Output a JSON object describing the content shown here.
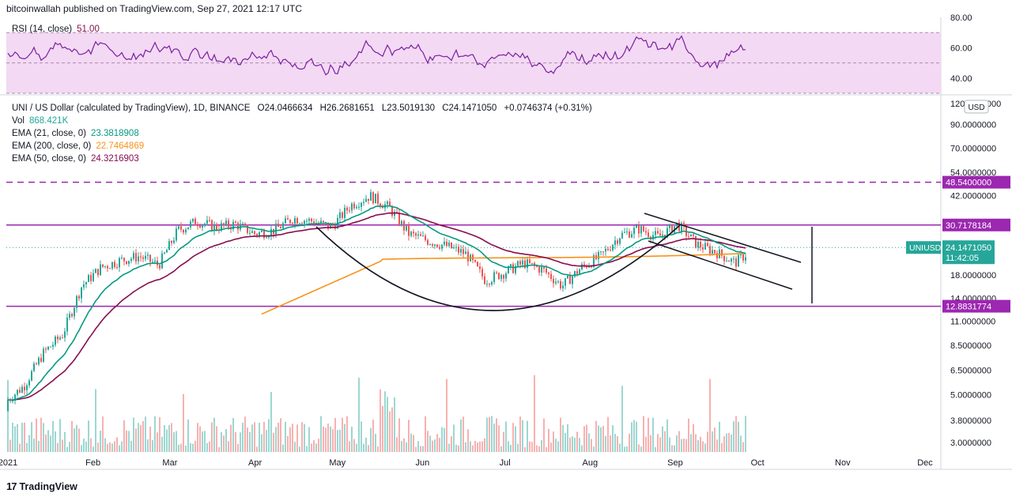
{
  "header": {
    "caption": "bitcoinwallah published on TradingView.com, Sep 27, 2021 12:17 UTC"
  },
  "footer": {
    "brand": "TradingView",
    "logo_text": "17"
  },
  "rsi_panel": {
    "label": "RSI (14, close)",
    "value": "51.00",
    "axis": [
      "80.00",
      "60.00",
      "40.00"
    ]
  },
  "main_legend": {
    "symbol": "UNI / US Dollar (calculated by TradingView), 1D, BINANCE",
    "ohlc": {
      "o": "O24.0466634",
      "h": "H26.2681651",
      "l": "L23.5019130",
      "c": "C24.1471050",
      "change": "+0.0746374 (+0.31%)"
    },
    "vol_label": "Vol",
    "vol_value": "868.421K",
    "ema21_label": "EMA (21, close, 0)",
    "ema21_value": "23.3818908",
    "ema200_label": "EMA (200, close, 0)",
    "ema200_value": "22.7464869",
    "ema50_label": "EMA (50, close, 0)",
    "ema50_value": "24.3216903"
  },
  "price_axis": {
    "unit": "USD",
    "ticks": [
      "120.0000000",
      "90.0000000",
      "70.0000000",
      "54.0000000",
      "42.0000000",
      "18.0000000",
      "14.0000000",
      "11.0000000",
      "8.5000000",
      "6.5000000",
      "5.0000000",
      "3.8000000",
      "3.0000000"
    ],
    "tags": {
      "upper_dashed": "48.5400000",
      "resistance": "30.7178184",
      "support": "12.8831774",
      "symbol_tag": "UNIUSD",
      "last_price": "24.1471050",
      "countdown": "11:42:05"
    }
  },
  "time_axis": {
    "labels": [
      "2021",
      "Feb",
      "Mar",
      "Apr",
      "May",
      "Jun",
      "Jul",
      "Aug",
      "Sep",
      "Oct",
      "Nov",
      "Dec"
    ]
  },
  "colors": {
    "candle_up": "#26a69a",
    "candle_down": "#ef5350",
    "ema21": "#089981",
    "ema200": "#f7931a",
    "ema50": "#880e4f",
    "level": "#9c27b0",
    "rsi": "#7b1fa2",
    "rsi_band": "#f3d9f3"
  },
  "chart_data": {
    "type": "candlestick",
    "symbol": "UNIUSD",
    "exchange": "BINANCE",
    "interval": "1D",
    "y_scale": "log",
    "x": [
      "2020-12-28",
      "2021-01-04",
      "2021-01-11",
      "2021-01-18",
      "2021-01-25",
      "2021-02-01",
      "2021-02-08",
      "2021-02-15",
      "2021-02-22",
      "2021-03-01",
      "2021-03-08",
      "2021-03-15",
      "2021-03-22",
      "2021-03-29",
      "2021-04-05",
      "2021-04-12",
      "2021-04-19",
      "2021-04-26",
      "2021-05-03",
      "2021-05-10",
      "2021-05-17",
      "2021-05-24",
      "2021-05-31",
      "2021-06-07",
      "2021-06-14",
      "2021-06-21",
      "2021-06-28",
      "2021-07-05",
      "2021-07-12",
      "2021-07-19",
      "2021-07-26",
      "2021-08-02",
      "2021-08-09",
      "2021-08-16",
      "2021-08-23",
      "2021-08-30",
      "2021-09-06",
      "2021-09-13",
      "2021-09-20",
      "2021-09-27"
    ],
    "close": [
      4.6,
      5.5,
      7.8,
      9.5,
      16.0,
      19.5,
      21.0,
      22.0,
      20.0,
      29.0,
      32.0,
      30.0,
      31.0,
      28.0,
      29.0,
      33.0,
      32.0,
      30.0,
      38.0,
      42.0,
      37.0,
      28.0,
      26.0,
      24.5,
      22.5,
      17.0,
      18.5,
      20.5,
      19.0,
      16.0,
      19.5,
      22.0,
      27.5,
      29.5,
      27.0,
      31.0,
      25.0,
      23.0,
      20.5,
      24.15
    ],
    "levels": {
      "upper_dashed": 48.54,
      "resistance": 30.7178184,
      "support": 12.8831774,
      "last": 24.147105
    }
  }
}
